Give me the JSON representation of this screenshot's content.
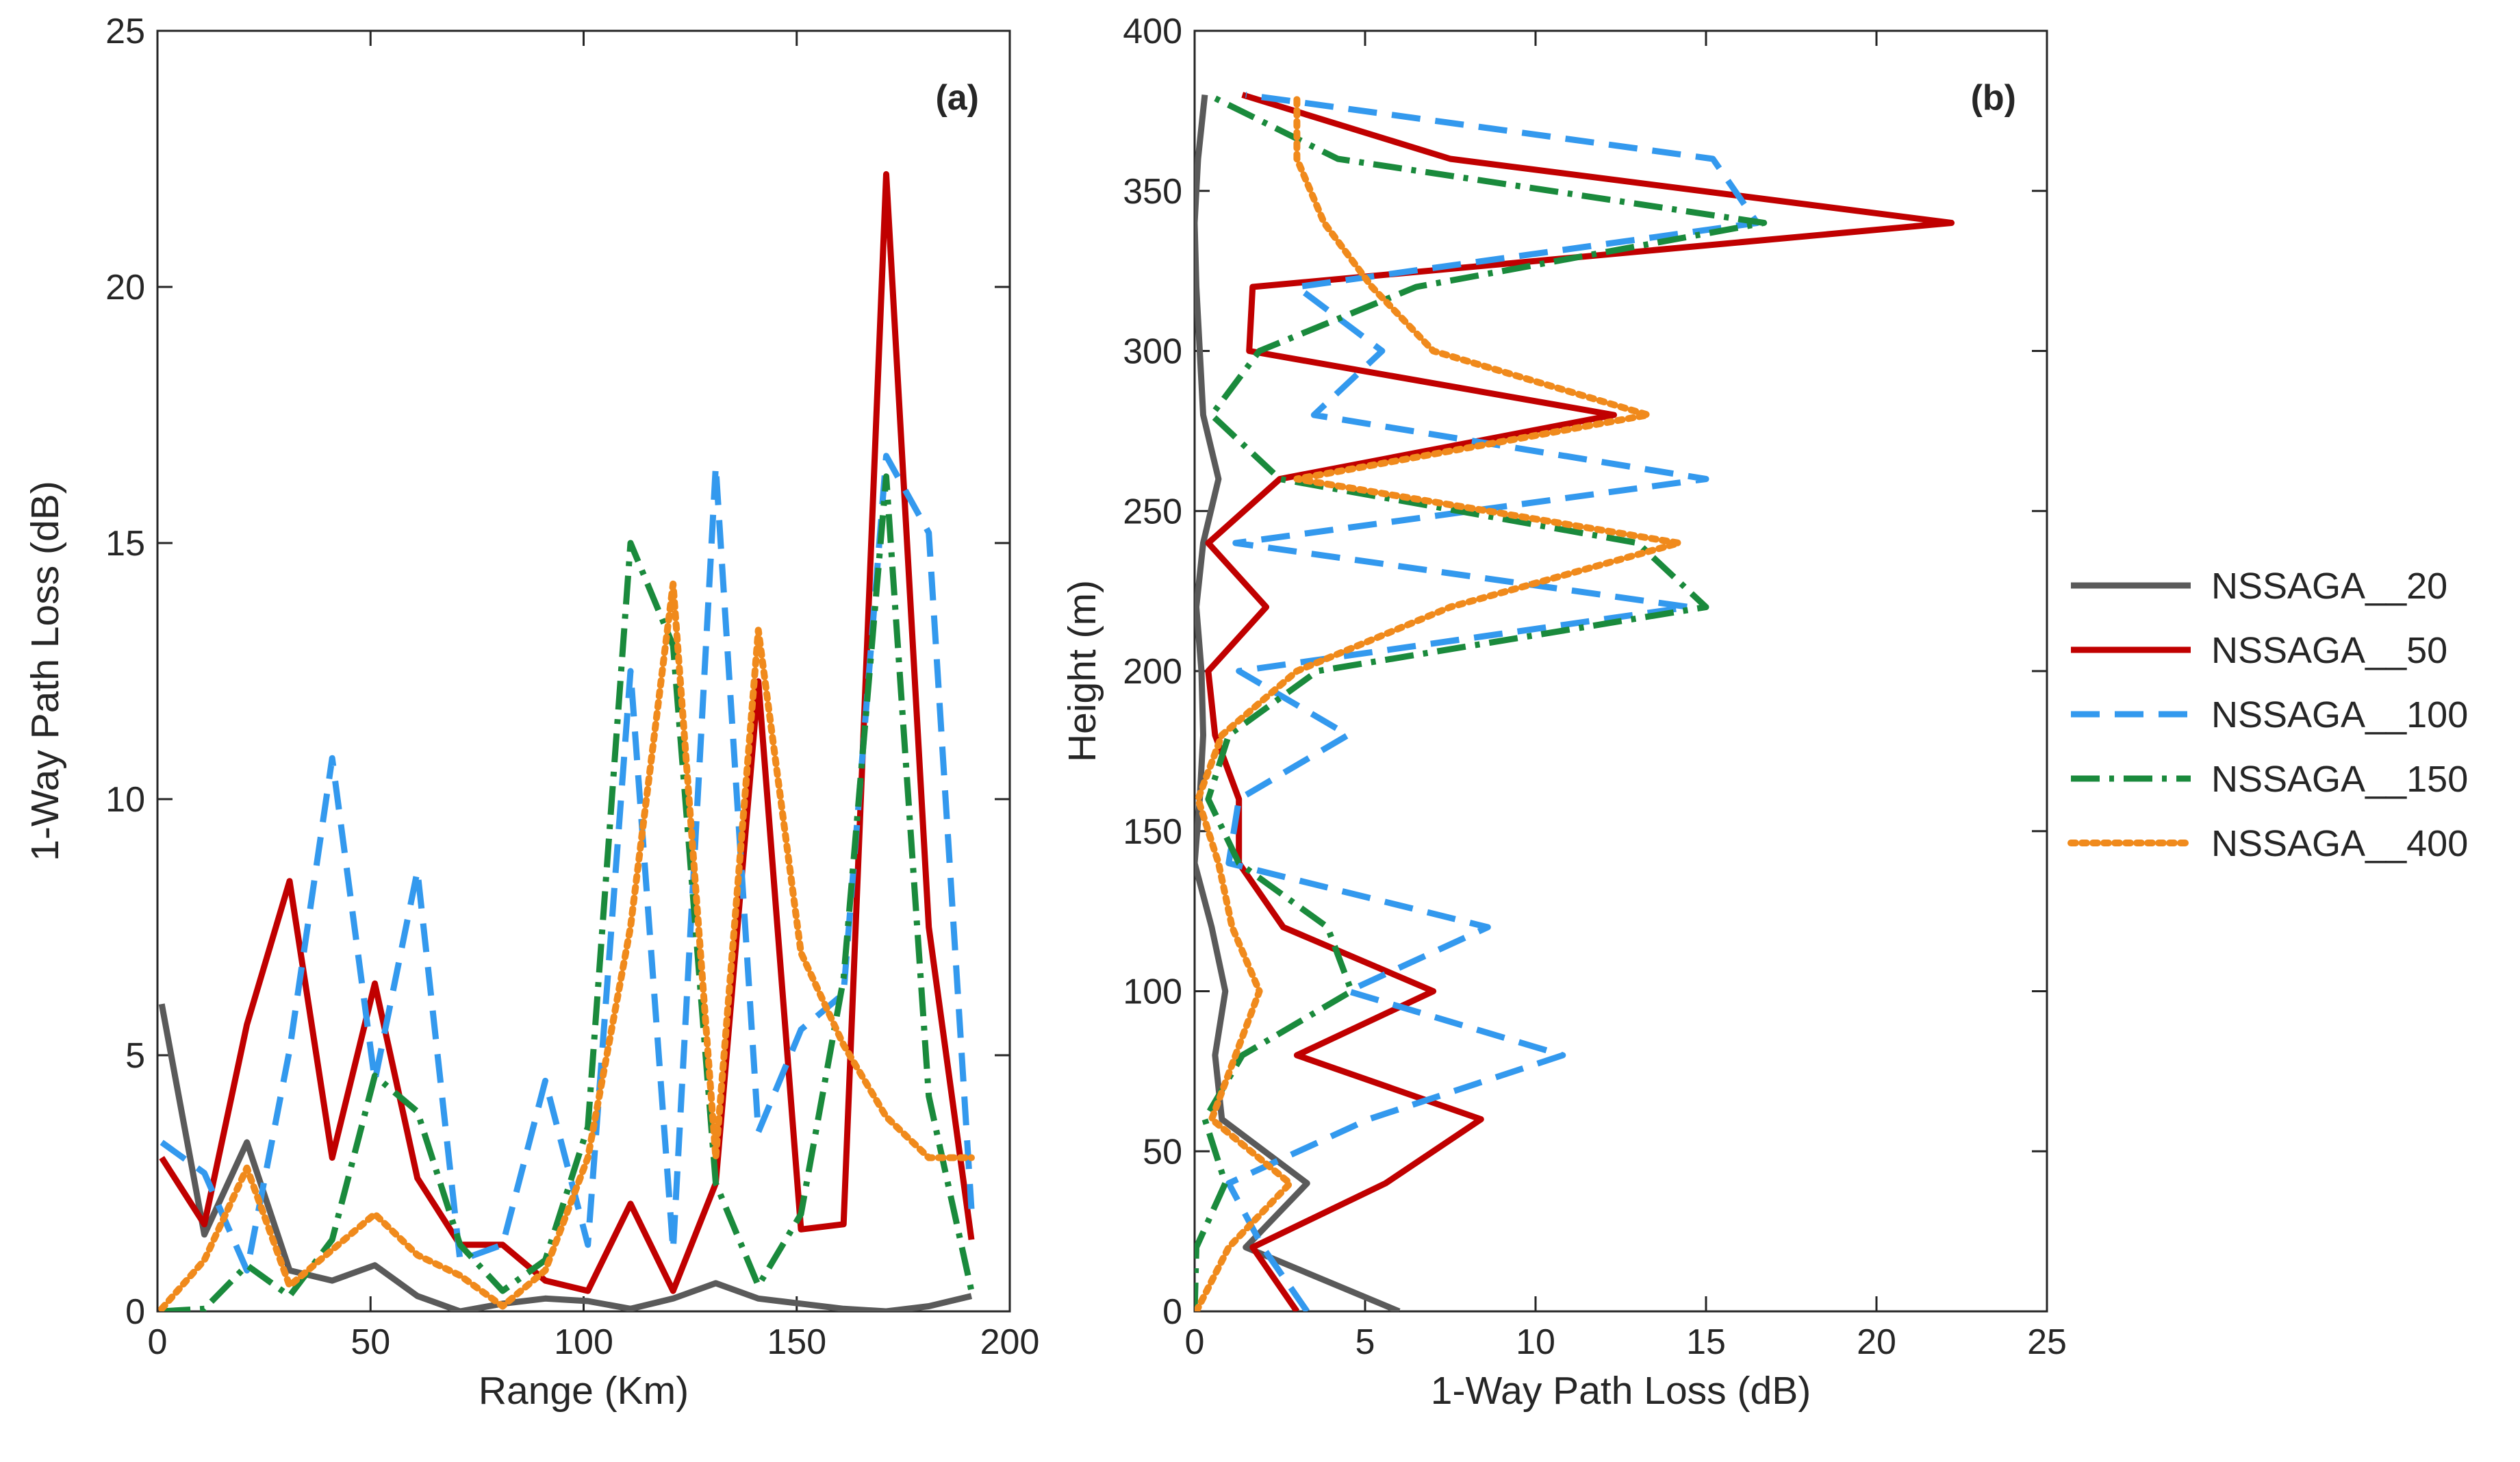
{
  "chart_data": [
    {
      "type": "line",
      "panel_label": "(a)",
      "xlabel": "Range (Km)",
      "ylabel": "1-Way Path Loss (dB)",
      "xlim": [
        0,
        200
      ],
      "ylim": [
        0,
        25
      ],
      "xticks": [
        "0",
        "50",
        "100",
        "150",
        "200"
      ],
      "yticks": [
        "0",
        "5",
        "10",
        "15",
        "20",
        "25"
      ],
      "x": [
        1,
        11,
        21,
        31,
        41,
        51,
        61,
        71,
        81,
        91,
        101,
        111,
        121,
        131,
        141,
        151,
        161,
        171,
        181,
        191
      ],
      "series": [
        {
          "name": "NSSAGA__20",
          "values": [
            6.0,
            1.5,
            3.3,
            0.8,
            0.6,
            0.9,
            0.3,
            0.0,
            0.15,
            0.25,
            0.2,
            0.05,
            0.25,
            0.55,
            0.25,
            0.15,
            0.05,
            0.0,
            0.1,
            0.3
          ]
        },
        {
          "name": "NSSAGA__50",
          "values": [
            3.0,
            1.7,
            5.6,
            8.4,
            3.0,
            6.4,
            2.6,
            1.3,
            1.3,
            0.6,
            0.4,
            2.1,
            0.4,
            2.5,
            12.3,
            1.6,
            1.7,
            22.2,
            7.5,
            1.4
          ]
        },
        {
          "name": "NSSAGA__100",
          "values": [
            3.3,
            2.7,
            0.8,
            5.1,
            10.8,
            4.5,
            8.6,
            1.0,
            1.3,
            4.5,
            1.3,
            12.5,
            1.2,
            16.5,
            3.5,
            5.5,
            6.2,
            16.7,
            15.2,
            2.0
          ]
        },
        {
          "name": "NSSAGA__150",
          "values": [
            0.0,
            0.05,
            0.9,
            0.3,
            1.4,
            4.6,
            3.9,
            1.3,
            0.4,
            1.0,
            3.6,
            15.0,
            13.0,
            2.5,
            0.5,
            1.9,
            6.5,
            16.3,
            4.2,
            0.4
          ]
        },
        {
          "name": "NSSAGA__400",
          "values": [
            0.05,
            1.0,
            2.8,
            0.5,
            1.2,
            1.9,
            1.1,
            0.7,
            0.1,
            0.8,
            3.0,
            7.5,
            14.2,
            3.0,
            13.3,
            7.0,
            5.2,
            3.8,
            3.0,
            3.0
          ]
        }
      ]
    },
    {
      "type": "line",
      "panel_label": "(b)",
      "xlabel": "1-Way Path Loss (dB)",
      "ylabel": "Height (m)",
      "xlim": [
        0,
        25
      ],
      "ylim": [
        0,
        400
      ],
      "xticks": [
        "0",
        "5",
        "10",
        "15",
        "20",
        "25"
      ],
      "yticks": [
        "0",
        "50",
        "100",
        "150",
        "200",
        "250",
        "300",
        "350",
        "400"
      ],
      "heights": [
        0,
        20,
        40,
        60,
        80,
        100,
        120,
        140,
        160,
        180,
        200,
        220,
        240,
        260,
        280,
        300,
        320,
        340,
        360,
        380
      ],
      "series": [
        {
          "name": "NSSAGA__20",
          "values": [
            6.0,
            1.5,
            3.3,
            0.8,
            0.6,
            0.9,
            0.5,
            0.0,
            0.15,
            0.25,
            0.2,
            0.05,
            0.25,
            0.7,
            0.25,
            0.15,
            0.05,
            0.0,
            0.1,
            0.3
          ]
        },
        {
          "name": "NSSAGA__50",
          "values": [
            3.0,
            1.7,
            5.6,
            8.4,
            3.0,
            7.0,
            2.6,
            1.3,
            1.3,
            0.6,
            0.4,
            2.1,
            0.4,
            2.5,
            12.3,
            1.6,
            1.7,
            22.2,
            7.5,
            1.4
          ]
        },
        {
          "name": "NSSAGA__100",
          "values": [
            3.3,
            2.0,
            1.0,
            5.1,
            10.8,
            4.5,
            8.6,
            1.0,
            1.3,
            4.5,
            1.3,
            14.5,
            1.2,
            15.0,
            3.5,
            5.5,
            3.0,
            16.5,
            15.2,
            1.5
          ]
        },
        {
          "name": "NSSAGA__150",
          "values": [
            0.0,
            0.05,
            0.9,
            0.3,
            1.4,
            4.6,
            3.9,
            1.3,
            0.4,
            1.0,
            3.6,
            15.0,
            13.0,
            2.5,
            0.5,
            1.9,
            6.5,
            16.7,
            4.2,
            0.4
          ]
        },
        {
          "name": "NSSAGA__400",
          "values": [
            0.05,
            1.0,
            2.8,
            0.5,
            1.2,
            1.9,
            1.1,
            0.7,
            0.1,
            0.8,
            3.0,
            7.5,
            14.2,
            3.0,
            13.3,
            7.0,
            5.2,
            3.8,
            3.0,
            3.0
          ]
        }
      ]
    }
  ],
  "legend": {
    "position": "right",
    "items": [
      {
        "label": "NSSAGA__20",
        "color": "#5a5a5a",
        "style": "solid"
      },
      {
        "label": "NSSAGA__50",
        "color": "#c00000",
        "style": "solid"
      },
      {
        "label": "NSSAGA__100",
        "color": "#3399ee",
        "style": "dashed"
      },
      {
        "label": "NSSAGA__150",
        "color": "#1a8a3c",
        "style": "dashdot"
      },
      {
        "label": "NSSAGA__400",
        "color": "#f08a1c",
        "style": "dotted"
      }
    ]
  }
}
